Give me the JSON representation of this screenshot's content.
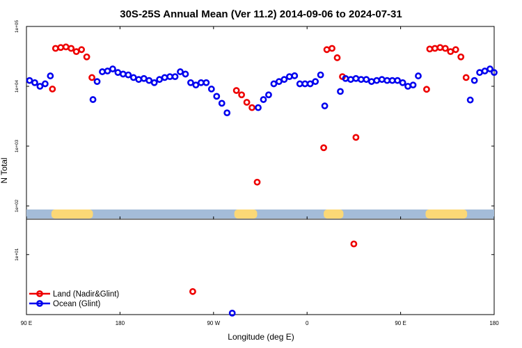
{
  "chart_data": {
    "type": "scatter",
    "title": "30S-25S Annual Mean (Ver 11.2)   2014-09-06 to 2024-07-31",
    "xlabel": "Longitude (deg E)",
    "ylabel": "N Total",
    "y_scale": "log",
    "x_domain_deg_from_left_edge": [
      0,
      450
    ],
    "xticks": [
      {
        "x": 0,
        "label": "90 E"
      },
      {
        "x": 90,
        "label": "180"
      },
      {
        "x": 180,
        "label": "90 W"
      },
      {
        "x": 270,
        "label": "0"
      },
      {
        "x": 360,
        "label": "90 E"
      },
      {
        "x": 450,
        "label": "180"
      }
    ],
    "upper_panel": {
      "ylim": [
        60,
        100000
      ],
      "yticks": [
        {
          "value": 100,
          "label": "1e+02"
        },
        {
          "value": 1000,
          "label": "1e+03"
        },
        {
          "value": 10000,
          "label": "1e+04"
        },
        {
          "value": 100000,
          "label": "1e+05"
        }
      ]
    },
    "lower_panel": {
      "ylim": [
        0.2,
        100
      ],
      "yticks": [
        {
          "value": 10,
          "label": "1e+01"
        }
      ]
    },
    "land_bands": [
      [
        24,
        64
      ],
      [
        200,
        222
      ],
      [
        286,
        305
      ],
      [
        384,
        424
      ]
    ],
    "colors": {
      "land": "#ee0000",
      "ocean": "#0000ee",
      "ocean_band": "#a4bcd8",
      "land_band": "#fbd876"
    },
    "legend": {
      "position": "bottom-left",
      "items": [
        {
          "label": "Land (Nadir&Glint)",
          "color": "#ee0000"
        },
        {
          "label": "Ocean (Glint)",
          "color": "#0000ee"
        }
      ]
    },
    "series": [
      {
        "name": "Land (Nadir&Glint)",
        "color": "#ee0000",
        "points": [
          [
            25,
            9000
          ],
          [
            28,
            43000
          ],
          [
            33,
            44500
          ],
          [
            38,
            45500
          ],
          [
            43,
            43000
          ],
          [
            48,
            38000
          ],
          [
            53,
            41000
          ],
          [
            58,
            31000
          ],
          [
            63,
            14000
          ],
          [
            160,
            0.9
          ],
          [
            202,
            8500
          ],
          [
            207,
            7200
          ],
          [
            212,
            5400
          ],
          [
            217,
            4400
          ],
          [
            222,
            250
          ],
          [
            286,
            940
          ],
          [
            289,
            41000
          ],
          [
            294,
            43000
          ],
          [
            299,
            30000
          ],
          [
            304,
            14500
          ],
          [
            315,
            20
          ],
          [
            317,
            1400
          ],
          [
            385,
            8900
          ],
          [
            388,
            42000
          ],
          [
            393,
            43000
          ],
          [
            398,
            44500
          ],
          [
            403,
            43000
          ],
          [
            408,
            38000
          ],
          [
            413,
            41000
          ],
          [
            418,
            31000
          ],
          [
            423,
            14000
          ]
        ]
      },
      {
        "name": "Ocean (Glint)",
        "color": "#0000ee",
        "points": [
          [
            3,
            12500
          ],
          [
            8,
            11500
          ],
          [
            13,
            10000
          ],
          [
            18,
            11000
          ],
          [
            23,
            14900
          ],
          [
            64,
            6000
          ],
          [
            68,
            12000
          ],
          [
            73,
            17500
          ],
          [
            78,
            18000
          ],
          [
            83,
            19500
          ],
          [
            88,
            17000
          ],
          [
            93,
            16000
          ],
          [
            98,
            15500
          ],
          [
            103,
            14000
          ],
          [
            108,
            13000
          ],
          [
            113,
            13500
          ],
          [
            118,
            12500
          ],
          [
            123,
            11500
          ],
          [
            128,
            13000
          ],
          [
            133,
            14000
          ],
          [
            138,
            14500
          ],
          [
            143,
            14500
          ],
          [
            148,
            17500
          ],
          [
            153,
            16000
          ],
          [
            158,
            11500
          ],
          [
            163,
            10500
          ],
          [
            168,
            11500
          ],
          [
            173,
            11500
          ],
          [
            178,
            9000
          ],
          [
            183,
            6800
          ],
          [
            188,
            5200
          ],
          [
            193,
            3600
          ],
          [
            198,
            0.22
          ],
          [
            223,
            4400
          ],
          [
            228,
            6000
          ],
          [
            233,
            7200
          ],
          [
            238,
            11000
          ],
          [
            243,
            12000
          ],
          [
            248,
            13000
          ],
          [
            253,
            14500
          ],
          [
            258,
            15000
          ],
          [
            263,
            11000
          ],
          [
            268,
            11000
          ],
          [
            273,
            11000
          ],
          [
            278,
            12000
          ],
          [
            283,
            15500
          ],
          [
            287,
            4700
          ],
          [
            302,
            8200
          ],
          [
            307,
            13500
          ],
          [
            312,
            13000
          ],
          [
            317,
            13500
          ],
          [
            322,
            13000
          ],
          [
            327,
            13000
          ],
          [
            332,
            12000
          ],
          [
            337,
            12500
          ],
          [
            342,
            13000
          ],
          [
            347,
            12500
          ],
          [
            352,
            12500
          ],
          [
            357,
            12500
          ],
          [
            362,
            11500
          ],
          [
            367,
            10000
          ],
          [
            372,
            10500
          ],
          [
            377,
            14900
          ],
          [
            427,
            5900
          ],
          [
            431,
            12500
          ],
          [
            436,
            17000
          ],
          [
            441,
            18000
          ],
          [
            446,
            19500
          ],
          [
            450,
            17000
          ]
        ]
      }
    ]
  }
}
